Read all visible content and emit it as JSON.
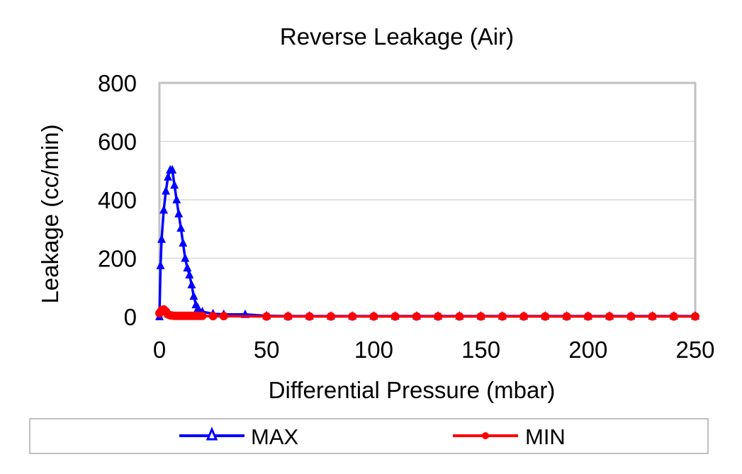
{
  "chart_data": {
    "type": "line",
    "title": "Reverse Leakage (Air)",
    "xlabel": "Differential Pressure (mbar)",
    "ylabel": "Leakage (cc/min)",
    "xlim": [
      0,
      250
    ],
    "ylim": [
      0,
      800
    ],
    "xticks": [
      "0",
      "50",
      "100",
      "150",
      "200",
      "250"
    ],
    "yticks": [
      "0",
      "200",
      "400",
      "600",
      "800"
    ],
    "grid": "horizontal",
    "legend_position": "bottom",
    "series": [
      {
        "name": "MAX",
        "color": "#0000ff",
        "marker": "triangle",
        "x": [
          0,
          0.5,
          1,
          2,
          3,
          4,
          5,
          6,
          7,
          8,
          9,
          10,
          11,
          12,
          13,
          14,
          15,
          16,
          17,
          18,
          20,
          25,
          30,
          40,
          50,
          60,
          70,
          80,
          90,
          100,
          110,
          120,
          130,
          140,
          150,
          160,
          170,
          180,
          190,
          200,
          210,
          220,
          230,
          240,
          250
        ],
        "y": [
          0,
          175,
          265,
          365,
          430,
          478,
          502,
          502,
          450,
          400,
          352,
          303,
          252,
          200,
          167,
          143,
          109,
          70,
          41,
          29,
          17,
          10,
          8,
          8,
          3,
          2,
          2,
          2,
          2,
          2,
          2,
          2,
          2,
          2,
          2,
          2,
          2,
          2,
          2,
          2,
          2,
          2,
          2,
          2,
          2
        ]
      },
      {
        "name": "MIN",
        "color": "#ff0000",
        "marker": "circle",
        "x": [
          0,
          1,
          2,
          3,
          4,
          5,
          6,
          7,
          8,
          9,
          10,
          11,
          12,
          13,
          14,
          15,
          16,
          17,
          18,
          19,
          20,
          25,
          30,
          50,
          60,
          70,
          80,
          90,
          100,
          110,
          120,
          130,
          140,
          150,
          160,
          170,
          180,
          190,
          200,
          210,
          220,
          230,
          240,
          250
        ],
        "y": [
          12,
          22,
          25,
          18,
          8,
          5,
          4,
          3,
          3,
          3,
          3,
          3,
          3,
          3,
          3,
          3,
          3,
          3,
          3,
          3,
          3,
          2,
          2,
          1,
          1,
          1,
          1,
          1,
          1,
          1,
          1,
          1,
          1,
          1,
          1,
          1,
          1,
          1,
          1,
          1,
          1,
          1,
          1,
          1
        ]
      }
    ]
  }
}
